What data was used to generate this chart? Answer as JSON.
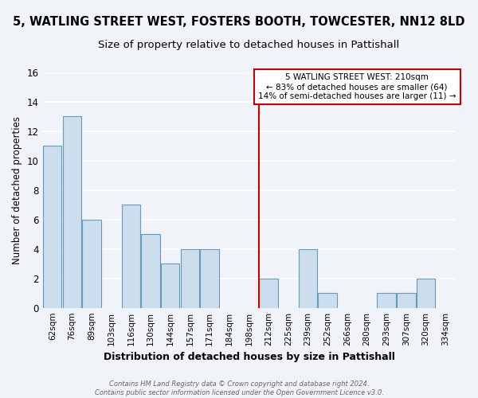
{
  "title": "5, WATLING STREET WEST, FOSTERS BOOTH, TOWCESTER, NN12 8LD",
  "subtitle": "Size of property relative to detached houses in Pattishall",
  "xlabel": "Distribution of detached houses by size in Pattishall",
  "ylabel": "Number of detached properties",
  "bar_labels": [
    "62sqm",
    "76sqm",
    "89sqm",
    "103sqm",
    "116sqm",
    "130sqm",
    "144sqm",
    "157sqm",
    "171sqm",
    "184sqm",
    "198sqm",
    "212sqm",
    "225sqm",
    "239sqm",
    "252sqm",
    "266sqm",
    "280sqm",
    "293sqm",
    "307sqm",
    "320sqm",
    "334sqm"
  ],
  "bar_values": [
    11,
    13,
    6,
    0,
    7,
    5,
    3,
    4,
    4,
    0,
    0,
    2,
    0,
    4,
    1,
    0,
    0,
    1,
    1,
    2,
    0
  ],
  "bar_color": "#ccdded",
  "bar_edge_color": "#6699bb",
  "vline_color": "#cc0000",
  "annotation_title": "5 WATLING STREET WEST: 210sqm",
  "annotation_line1": "← 83% of detached houses are smaller (64)",
  "annotation_line2": "14% of semi-detached houses are larger (11) →",
  "annotation_box_color": "#ffffff",
  "annotation_box_edge": "#cc0000",
  "ylim": [
    0,
    16
  ],
  "yticks": [
    0,
    2,
    4,
    6,
    8,
    10,
    12,
    14,
    16
  ],
  "footer1": "Contains HM Land Registry data © Crown copyright and database right 2024.",
  "footer2": "Contains public sector information licensed under the Open Government Licence v3.0.",
  "bg_color": "#f0f4f8",
  "grid_color": "#ffffff",
  "title_fontsize": 10.5,
  "subtitle_fontsize": 9.5
}
